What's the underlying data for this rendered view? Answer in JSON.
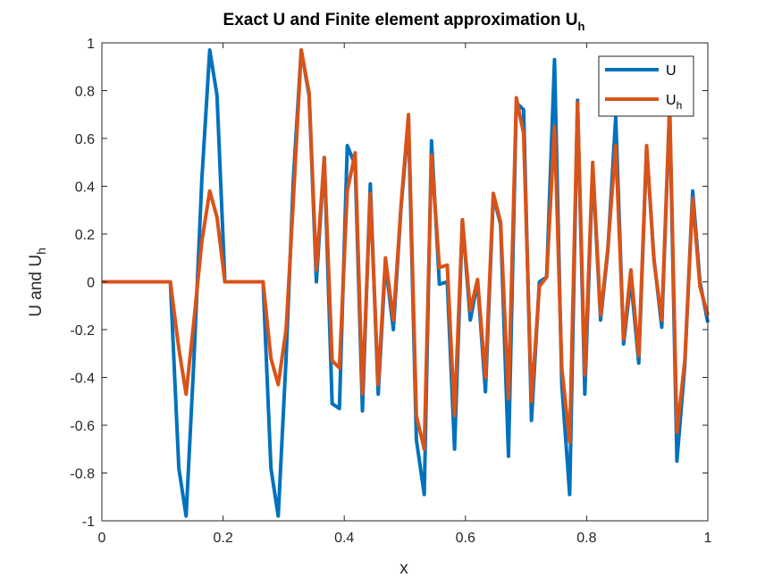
{
  "chart_data": {
    "type": "line",
    "title": "Exact U and Finite element approximation U",
    "title_subscript": "h",
    "xlabel": "x",
    "ylabel": "U and U",
    "ylabel_subscript": "h",
    "xlim": [
      0,
      1
    ],
    "ylim": [
      -1,
      1
    ],
    "xticks": [
      0,
      0.2,
      0.4,
      0.6,
      0.8,
      1
    ],
    "xtick_labels": [
      "0",
      "0.2",
      "0.4",
      "0.6",
      "0.8",
      "1"
    ],
    "yticks": [
      -1,
      -0.8,
      -0.6,
      -0.4,
      -0.2,
      0,
      0.2,
      0.4,
      0.6,
      0.8,
      1
    ],
    "ytick_labels": [
      "-1",
      "-0.8",
      "-0.6",
      "-0.4",
      "-0.2",
      "0",
      "0.2",
      "0.4",
      "0.6",
      "0.8",
      "1"
    ],
    "grid": false,
    "legend_position": "top-right",
    "series": [
      {
        "name": "U",
        "name_subscript": "",
        "color": "#0072BD",
        "x": [
          0,
          0.113,
          0.127,
          0.139,
          0.152,
          0.165,
          0.178,
          0.19,
          0.203,
          0.266,
          0.279,
          0.291,
          0.304,
          0.316,
          0.329,
          0.342,
          0.354,
          0.367,
          0.38,
          0.392,
          0.405,
          0.418,
          0.43,
          0.443,
          0.456,
          0.468,
          0.481,
          0.494,
          0.506,
          0.519,
          0.532,
          0.544,
          0.557,
          0.57,
          0.582,
          0.595,
          0.608,
          0.62,
          0.633,
          0.646,
          0.658,
          0.671,
          0.684,
          0.696,
          0.709,
          0.722,
          0.734,
          0.747,
          0.759,
          0.772,
          0.785,
          0.797,
          0.81,
          0.823,
          0.835,
          0.848,
          0.861,
          0.873,
          0.886,
          0.899,
          0.911,
          0.924,
          0.937,
          0.949,
          0.962,
          0.975,
          0.987,
          1.0
        ],
        "y": [
          0,
          0,
          -0.78,
          -0.98,
          -0.32,
          0.43,
          0.97,
          0.78,
          0,
          0,
          -0.78,
          -0.98,
          -0.32,
          0.43,
          0.97,
          0.78,
          0,
          0.52,
          -0.51,
          -0.53,
          0.57,
          0.49,
          -0.54,
          0.41,
          -0.47,
          0.08,
          -0.2,
          0.32,
          0.67,
          -0.66,
          -0.89,
          0.59,
          -0.01,
          0,
          -0.7,
          0.26,
          -0.16,
          0,
          -0.46,
          0.36,
          0.24,
          -0.73,
          0.75,
          0.72,
          -0.58,
          0,
          0.02,
          0.93,
          -0.43,
          -0.89,
          0.76,
          -0.47,
          0.48,
          -0.16,
          0.13,
          0.69,
          -0.26,
          0.01,
          -0.34,
          0.56,
          0.1,
          -0.19,
          0.73,
          -0.75,
          -0.35,
          0.38,
          0,
          -0.17
        ]
      },
      {
        "name": "U",
        "name_subscript": "h",
        "color": "#D95319",
        "x": [
          0,
          0.113,
          0.127,
          0.139,
          0.152,
          0.165,
          0.178,
          0.19,
          0.203,
          0.266,
          0.279,
          0.291,
          0.304,
          0.316,
          0.329,
          0.342,
          0.354,
          0.367,
          0.38,
          0.392,
          0.405,
          0.418,
          0.43,
          0.443,
          0.456,
          0.468,
          0.481,
          0.494,
          0.506,
          0.519,
          0.532,
          0.544,
          0.557,
          0.57,
          0.582,
          0.595,
          0.608,
          0.62,
          0.633,
          0.646,
          0.658,
          0.671,
          0.684,
          0.696,
          0.709,
          0.722,
          0.734,
          0.747,
          0.759,
          0.772,
          0.785,
          0.797,
          0.81,
          0.823,
          0.835,
          0.848,
          0.861,
          0.873,
          0.886,
          0.899,
          0.911,
          0.924,
          0.937,
          0.949,
          0.962,
          0.975,
          0.987,
          1.0
        ],
        "y": [
          0,
          0,
          -0.28,
          -0.47,
          -0.16,
          0.17,
          0.38,
          0.27,
          0,
          0,
          -0.32,
          -0.43,
          -0.2,
          0.34,
          0.97,
          0.79,
          0.05,
          0.52,
          -0.33,
          -0.36,
          0.38,
          0.54,
          -0.47,
          0.37,
          -0.43,
          0.1,
          -0.16,
          0.33,
          0.7,
          -0.56,
          -0.7,
          0.53,
          0.06,
          0.07,
          -0.56,
          0.26,
          -0.12,
          0.01,
          -0.4,
          0.37,
          0.25,
          -0.49,
          0.77,
          0.62,
          -0.5,
          -0.02,
          0.02,
          0.65,
          -0.36,
          -0.67,
          0.75,
          -0.39,
          0.5,
          -0.14,
          0.14,
          0.57,
          -0.24,
          0.05,
          -0.31,
          0.57,
          0.09,
          -0.16,
          0.74,
          -0.63,
          -0.33,
          0.35,
          -0.02,
          -0.14
        ]
      }
    ]
  }
}
